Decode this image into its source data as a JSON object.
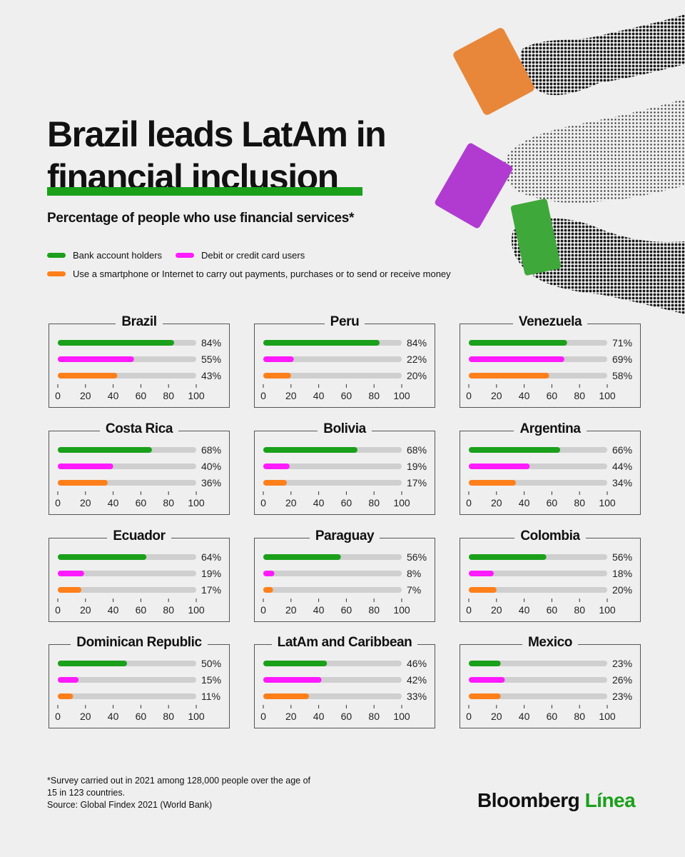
{
  "header": {
    "title_line1": "Brazil leads LatAm in",
    "title_line2": "financial inclusion",
    "subtitle": "Percentage of people who use financial services*"
  },
  "legend": [
    {
      "label": "Bank account holders",
      "color": "#1aa01a"
    },
    {
      "label": "Debit or credit card users",
      "color": "#ff1aff"
    },
    {
      "label": "Use a smartphone or Internet to carry out payments, purchases or to send or receive money",
      "color": "#ff7f1a"
    }
  ],
  "colors": {
    "bank": "#1aa01a",
    "card": "#ff1aff",
    "mobile": "#ff7f1a",
    "track": "#cfcfcf",
    "card_orange": "#e8873a",
    "card_purple": "#b13bd1",
    "card_green": "#3fa83a"
  },
  "illustration": {
    "icons": [
      "hand-holding-orange-card-icon",
      "hand-holding-purple-card-icon",
      "hand-holding-green-card-icon"
    ]
  },
  "chart_data": [
    {
      "type": "bar",
      "title": "Brazil",
      "categories": [
        "Bank account holders",
        "Debit or credit card users",
        "Use a smartphone or Internet to carry out payments, purchases or to send or receive money"
      ],
      "values": [
        84,
        55,
        43
      ],
      "value_labels": [
        "84%",
        "55%",
        "43%"
      ],
      "xlim": [
        0,
        100
      ],
      "xticks": [
        "0",
        "20",
        "40",
        "60",
        "80",
        "100"
      ]
    },
    {
      "type": "bar",
      "title": "Peru",
      "categories": [
        "Bank account holders",
        "Debit or credit card users",
        "Use a smartphone or Internet to carry out payments, purchases or to send or receive money"
      ],
      "values": [
        84,
        22,
        20
      ],
      "value_labels": [
        "84%",
        "22%",
        "20%"
      ],
      "xlim": [
        0,
        100
      ],
      "xticks": [
        "0",
        "20",
        "40",
        "60",
        "80",
        "100"
      ]
    },
    {
      "type": "bar",
      "title": "Venezuela",
      "categories": [
        "Bank account holders",
        "Debit or credit card users",
        "Use a smartphone or Internet to carry out payments, purchases or to send or receive money"
      ],
      "values": [
        71,
        69,
        58
      ],
      "value_labels": [
        "71%",
        "69%",
        "58%"
      ],
      "xlim": [
        0,
        100
      ],
      "xticks": [
        "0",
        "20",
        "40",
        "60",
        "80",
        "100"
      ]
    },
    {
      "type": "bar",
      "title": "Costa Rica",
      "categories": [
        "Bank account holders",
        "Debit or credit card users",
        "Use a smartphone or Internet to carry out payments, purchases or to send or receive money"
      ],
      "values": [
        68,
        40,
        36
      ],
      "value_labels": [
        "68%",
        "40%",
        "36%"
      ],
      "xlim": [
        0,
        100
      ],
      "xticks": [
        "0",
        "20",
        "40",
        "60",
        "80",
        "100"
      ]
    },
    {
      "type": "bar",
      "title": "Bolivia",
      "categories": [
        "Bank account holders",
        "Debit or credit card users",
        "Use a smartphone or Internet to carry out payments, purchases or to send or receive money"
      ],
      "values": [
        68,
        19,
        17
      ],
      "value_labels": [
        "68%",
        "19%",
        "17%"
      ],
      "xlim": [
        0,
        100
      ],
      "xticks": [
        "0",
        "20",
        "40",
        "60",
        "80",
        "100"
      ]
    },
    {
      "type": "bar",
      "title": "Argentina",
      "categories": [
        "Bank account holders",
        "Debit or credit card users",
        "Use a smartphone or Internet to carry out payments, purchases or to send or receive money"
      ],
      "values": [
        66,
        44,
        34
      ],
      "value_labels": [
        "66%",
        "44%",
        "34%"
      ],
      "xlim": [
        0,
        100
      ],
      "xticks": [
        "0",
        "20",
        "40",
        "60",
        "80",
        "100"
      ]
    },
    {
      "type": "bar",
      "title": "Ecuador",
      "categories": [
        "Bank account holders",
        "Debit or credit card users",
        "Use a smartphone or Internet to carry out payments, purchases or to send or receive money"
      ],
      "values": [
        64,
        19,
        17
      ],
      "value_labels": [
        "64%",
        "19%",
        "17%"
      ],
      "xlim": [
        0,
        100
      ],
      "xticks": [
        "0",
        "20",
        "40",
        "60",
        "80",
        "100"
      ]
    },
    {
      "type": "bar",
      "title": "Paraguay",
      "categories": [
        "Bank account holders",
        "Debit or credit card users",
        "Use a smartphone or Internet to carry out payments, purchases or to send or receive money"
      ],
      "values": [
        56,
        8,
        7
      ],
      "value_labels": [
        "56%",
        "8%",
        "7%"
      ],
      "xlim": [
        0,
        100
      ],
      "xticks": [
        "0",
        "20",
        "40",
        "60",
        "80",
        "100"
      ]
    },
    {
      "type": "bar",
      "title": "Colombia",
      "categories": [
        "Bank account holders",
        "Debit or credit card users",
        "Use a smartphone or Internet to carry out payments, purchases or to send or receive money"
      ],
      "values": [
        56,
        18,
        20
      ],
      "value_labels": [
        "56%",
        "18%",
        "20%"
      ],
      "xlim": [
        0,
        100
      ],
      "xticks": [
        "0",
        "20",
        "40",
        "60",
        "80",
        "100"
      ]
    },
    {
      "type": "bar",
      "title": "Dominican Republic",
      "categories": [
        "Bank account holders",
        "Debit or credit card users",
        "Use a smartphone or Internet to carry out payments, purchases or to send or receive money"
      ],
      "values": [
        50,
        15,
        11
      ],
      "value_labels": [
        "50%",
        "15%",
        "11%"
      ],
      "xlim": [
        0,
        100
      ],
      "xticks": [
        "0",
        "20",
        "40",
        "60",
        "80",
        "100"
      ]
    },
    {
      "type": "bar",
      "title": "LatAm and Caribbean",
      "categories": [
        "Bank account holders",
        "Debit or credit card users",
        "Use a smartphone or Internet to carry out payments, purchases or to send or receive money"
      ],
      "values": [
        46,
        42,
        33
      ],
      "value_labels": [
        "46%",
        "42%",
        "33%"
      ],
      "xlim": [
        0,
        100
      ],
      "xticks": [
        "0",
        "20",
        "40",
        "60",
        "80",
        "100"
      ]
    },
    {
      "type": "bar",
      "title": "Mexico",
      "categories": [
        "Bank account holders",
        "Debit or credit card users",
        "Use a smartphone or Internet to carry out payments, purchases or to send or receive money"
      ],
      "values": [
        23,
        26,
        23
      ],
      "value_labels": [
        "23%",
        "26%",
        "23%"
      ],
      "xlim": [
        0,
        100
      ],
      "xticks": [
        "0",
        "20",
        "40",
        "60",
        "80",
        "100"
      ]
    }
  ],
  "footer": {
    "note_line1": "*Survey carried out in 2021 among 128,000 people over the age of",
    "note_line2": "15 in 123 countries.",
    "source": "Source: Global Findex 2021 (World Bank)",
    "logo_main": "Bloomberg",
    "logo_accent": "Línea"
  }
}
